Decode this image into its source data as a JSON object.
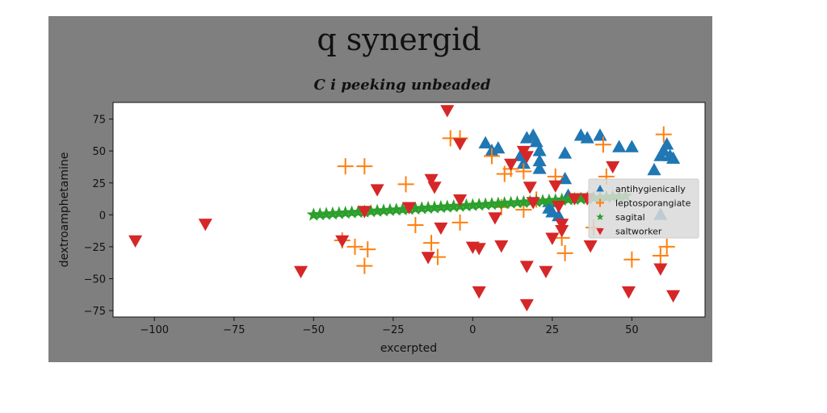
{
  "chart_data": {
    "type": "scatter",
    "title": "q synergid",
    "subtitle": "C i peeking unbeaded",
    "xlabel": "excerpted",
    "ylabel": "dextroamphetamine",
    "xlim": [
      -113,
      73
    ],
    "ylim": [
      -80,
      88
    ],
    "xticks": [
      -100,
      -75,
      -50,
      -25,
      0,
      25,
      50
    ],
    "yticks": [
      -75,
      -50,
      -25,
      0,
      25,
      50,
      75
    ],
    "xtick_labels": [
      "−100",
      "−75",
      "−50",
      "−25",
      "0",
      "25",
      "50"
    ],
    "ytick_labels": [
      "−75",
      "−50",
      "−25",
      "0",
      "25",
      "50",
      "75"
    ],
    "legend_position": "center-right",
    "grid": false,
    "series": [
      {
        "name": "antihygienically",
        "marker": "triangle-up",
        "color": "#1f77b4",
        "points": [
          [
            4,
            56
          ],
          [
            6,
            50
          ],
          [
            8,
            52
          ],
          [
            15,
            46
          ],
          [
            16,
            40
          ],
          [
            17,
            60
          ],
          [
            19,
            62
          ],
          [
            20,
            57
          ],
          [
            21,
            50
          ],
          [
            21,
            42
          ],
          [
            21,
            36
          ],
          [
            24,
            10
          ],
          [
            24,
            5
          ],
          [
            25,
            2
          ],
          [
            27,
            -1
          ],
          [
            29,
            48
          ],
          [
            29,
            28
          ],
          [
            30,
            15
          ],
          [
            34,
            62
          ],
          [
            36,
            60
          ],
          [
            40,
            62
          ],
          [
            46,
            53
          ],
          [
            50,
            53
          ],
          [
            57,
            35
          ],
          [
            59,
            46
          ],
          [
            60,
            50
          ],
          [
            61,
            55
          ],
          [
            62,
            46
          ],
          [
            63,
            44
          ],
          [
            59,
            0
          ]
        ]
      },
      {
        "name": "leptosporangiate",
        "marker": "plus",
        "color": "#ff7f0e",
        "points": [
          [
            -40,
            38
          ],
          [
            -34,
            38
          ],
          [
            -41,
            -20
          ],
          [
            -37,
            -25
          ],
          [
            -34,
            -40
          ],
          [
            -33,
            -27
          ],
          [
            -21,
            24
          ],
          [
            -18,
            -8
          ],
          [
            -13,
            -22
          ],
          [
            -11,
            -33
          ],
          [
            -7,
            60
          ],
          [
            -4,
            60
          ],
          [
            -4,
            -6
          ],
          [
            6,
            46
          ],
          [
            9,
            6
          ],
          [
            10,
            32
          ],
          [
            12,
            36
          ],
          [
            16,
            34
          ],
          [
            16,
            4
          ],
          [
            20,
            12
          ],
          [
            26,
            30
          ],
          [
            28,
            -18
          ],
          [
            29,
            -30
          ],
          [
            38,
            -10
          ],
          [
            41,
            55
          ],
          [
            42,
            30
          ],
          [
            50,
            -35
          ],
          [
            59,
            -32
          ],
          [
            60,
            63
          ],
          [
            61,
            -25
          ]
        ]
      },
      {
        "name": "sagital",
        "marker": "star",
        "color": "#2ca02c",
        "points": [
          [
            -50,
            0
          ],
          [
            -48,
            0.3
          ],
          [
            -46,
            0.6
          ],
          [
            -44,
            0.9
          ],
          [
            -42,
            1.2
          ],
          [
            -40,
            1.5
          ],
          [
            -38,
            1.8
          ],
          [
            -36,
            2.1
          ],
          [
            -34,
            2.4
          ],
          [
            -32,
            2.7
          ],
          [
            -30,
            3
          ],
          [
            -28,
            3.3
          ],
          [
            -26,
            3.6
          ],
          [
            -24,
            3.9
          ],
          [
            -22,
            4.2
          ],
          [
            -20,
            4.5
          ],
          [
            -18,
            4.8
          ],
          [
            -16,
            5.1
          ],
          [
            -14,
            5.4
          ],
          [
            -12,
            5.7
          ],
          [
            -10,
            6
          ],
          [
            -8,
            6.3
          ],
          [
            -6,
            6.6
          ],
          [
            -4,
            6.9
          ],
          [
            -2,
            7.2
          ],
          [
            0,
            7.5
          ],
          [
            2,
            7.8
          ],
          [
            4,
            8.1
          ],
          [
            6,
            8.4
          ],
          [
            8,
            8.7
          ],
          [
            10,
            9
          ],
          [
            12,
            9.3
          ],
          [
            14,
            9.6
          ],
          [
            16,
            9.9
          ],
          [
            18,
            10.2
          ],
          [
            20,
            10.5
          ],
          [
            22,
            10.8
          ],
          [
            24,
            11.1
          ],
          [
            26,
            11.4
          ],
          [
            28,
            11.7
          ],
          [
            30,
            12
          ],
          [
            32,
            12.3
          ],
          [
            34,
            12.6
          ],
          [
            36,
            12.9
          ],
          [
            38,
            13.2
          ],
          [
            40,
            13.5
          ],
          [
            42,
            13.8
          ],
          [
            44,
            14.1
          ],
          [
            46,
            14.4
          ],
          [
            48,
            14.7
          ]
        ]
      },
      {
        "name": "saltworker",
        "marker": "triangle-down",
        "color": "#d62728",
        "points": [
          [
            -106,
            -20
          ],
          [
            -84,
            -7
          ],
          [
            -54,
            -44
          ],
          [
            -41,
            -20
          ],
          [
            -34,
            3
          ],
          [
            -30,
            20
          ],
          [
            -20,
            6
          ],
          [
            -14,
            -33
          ],
          [
            -13,
            28
          ],
          [
            -12,
            22
          ],
          [
            -10,
            -10
          ],
          [
            -8,
            82
          ],
          [
            -4,
            56
          ],
          [
            -4,
            12
          ],
          [
            0,
            -25
          ],
          [
            2,
            -26
          ],
          [
            2,
            -60
          ],
          [
            7,
            -2
          ],
          [
            9,
            -24
          ],
          [
            12,
            40
          ],
          [
            16,
            50
          ],
          [
            17,
            46
          ],
          [
            17,
            -40
          ],
          [
            17,
            -70
          ],
          [
            18,
            22
          ],
          [
            19,
            10
          ],
          [
            23,
            -44
          ],
          [
            25,
            -18
          ],
          [
            26,
            23
          ],
          [
            27,
            7
          ],
          [
            28,
            -7
          ],
          [
            28,
            -12
          ],
          [
            32,
            13
          ],
          [
            36,
            13
          ],
          [
            37,
            -24
          ],
          [
            44,
            38
          ],
          [
            49,
            -60
          ],
          [
            59,
            -42
          ],
          [
            63,
            -63
          ]
        ]
      }
    ]
  }
}
